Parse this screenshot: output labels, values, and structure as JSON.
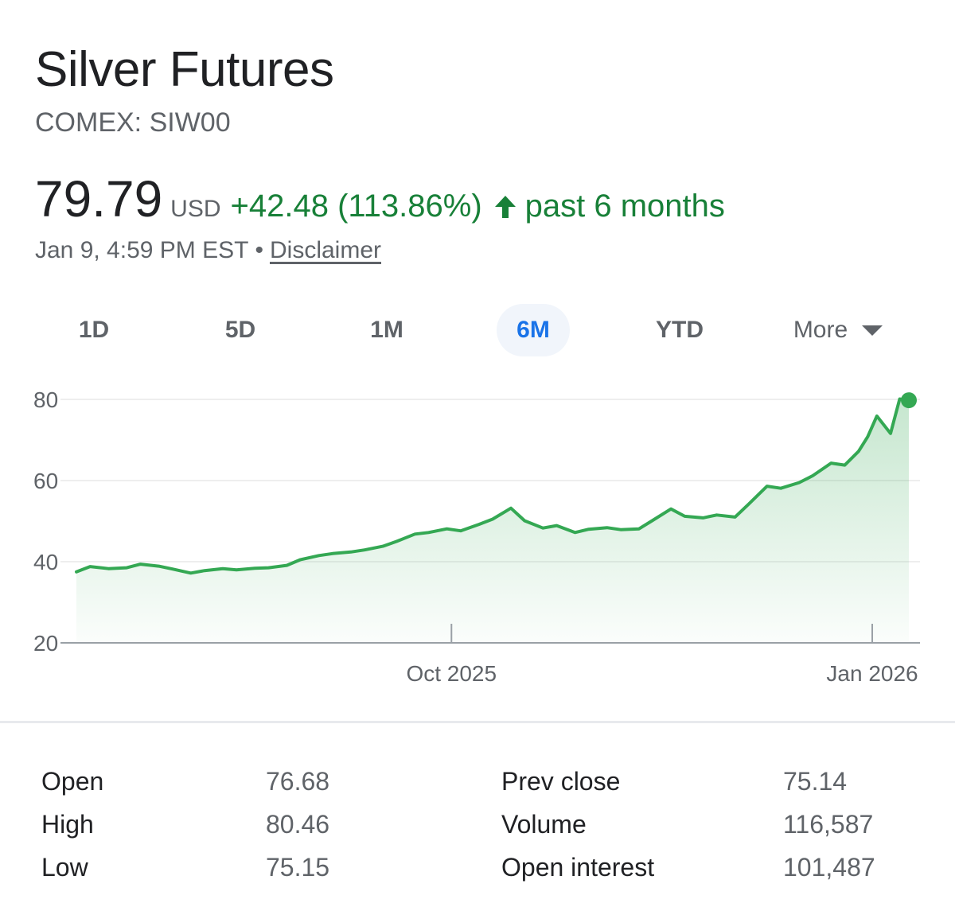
{
  "header": {
    "title": "Silver Futures",
    "ticker": "COMEX: SIW00"
  },
  "quote": {
    "price": "79.79",
    "currency": "USD",
    "change": "+42.48 (113.86%)",
    "period": "past 6 months",
    "timestamp": "Jan 9, 4:59 PM EST",
    "separator": "•",
    "disclaimer": "Disclaimer",
    "positive_color": "#188038"
  },
  "tabs": [
    {
      "label": "1D"
    },
    {
      "label": "5D"
    },
    {
      "label": "1M"
    },
    {
      "label": "6M",
      "active": true
    },
    {
      "label": "YTD"
    },
    {
      "label": "More"
    }
  ],
  "chart_data": {
    "type": "area",
    "y_ticks": [
      "80",
      "60",
      "40",
      "20"
    ],
    "x_ticks": [
      "Oct 2025",
      "Jan 2026"
    ],
    "ylim": [
      20,
      80
    ],
    "grid": true,
    "line_color": "#34a853",
    "x": [
      "2025-07-11",
      "2025-07-14",
      "2025-07-18",
      "2025-07-22",
      "2025-07-25",
      "2025-07-29",
      "2025-08-01",
      "2025-08-05",
      "2025-08-08",
      "2025-08-12",
      "2025-08-15",
      "2025-08-19",
      "2025-08-22",
      "2025-08-26",
      "2025-08-29",
      "2025-09-02",
      "2025-09-05",
      "2025-09-09",
      "2025-09-12",
      "2025-09-16",
      "2025-09-19",
      "2025-09-23",
      "2025-09-26",
      "2025-09-30",
      "2025-10-03",
      "2025-10-07",
      "2025-10-10",
      "2025-10-14",
      "2025-10-17",
      "2025-10-21",
      "2025-10-24",
      "2025-10-28",
      "2025-10-31",
      "2025-11-04",
      "2025-11-07",
      "2025-11-11",
      "2025-11-14",
      "2025-11-18",
      "2025-11-21",
      "2025-11-25",
      "2025-11-28",
      "2025-12-02",
      "2025-12-05",
      "2025-12-09",
      "2025-12-12",
      "2025-12-16",
      "2025-12-19",
      "2025-12-23",
      "2025-12-26",
      "2025-12-29",
      "2025-12-31",
      "2026-01-02",
      "2026-01-05",
      "2026-01-07",
      "2026-01-09"
    ],
    "values": [
      37.5,
      38.8,
      38.3,
      38.5,
      39.4,
      38.9,
      38.2,
      37.2,
      37.8,
      38.3,
      38.0,
      38.4,
      38.5,
      39.1,
      40.5,
      41.5,
      42.0,
      42.4,
      42.9,
      43.8,
      45.0,
      46.8,
      47.2,
      48.1,
      47.6,
      49.2,
      50.5,
      53.2,
      50.1,
      48.3,
      48.9,
      47.2,
      48.0,
      48.4,
      47.9,
      48.1,
      50.2,
      53.0,
      51.2,
      50.8,
      51.5,
      51.0,
      54.2,
      58.6,
      58.1,
      59.5,
      61.2,
      64.3,
      63.8,
      67.2,
      70.8,
      75.9,
      71.6,
      80.1,
      79.79
    ]
  },
  "stats": [
    {
      "label": "Open",
      "value": "76.68"
    },
    {
      "label": "High",
      "value": "80.46"
    },
    {
      "label": "Low",
      "value": "75.15"
    },
    {
      "label": "Prev close",
      "value": "75.14"
    },
    {
      "label": "Volume",
      "value": "116,587"
    },
    {
      "label": "Open interest",
      "value": "101,487"
    }
  ]
}
